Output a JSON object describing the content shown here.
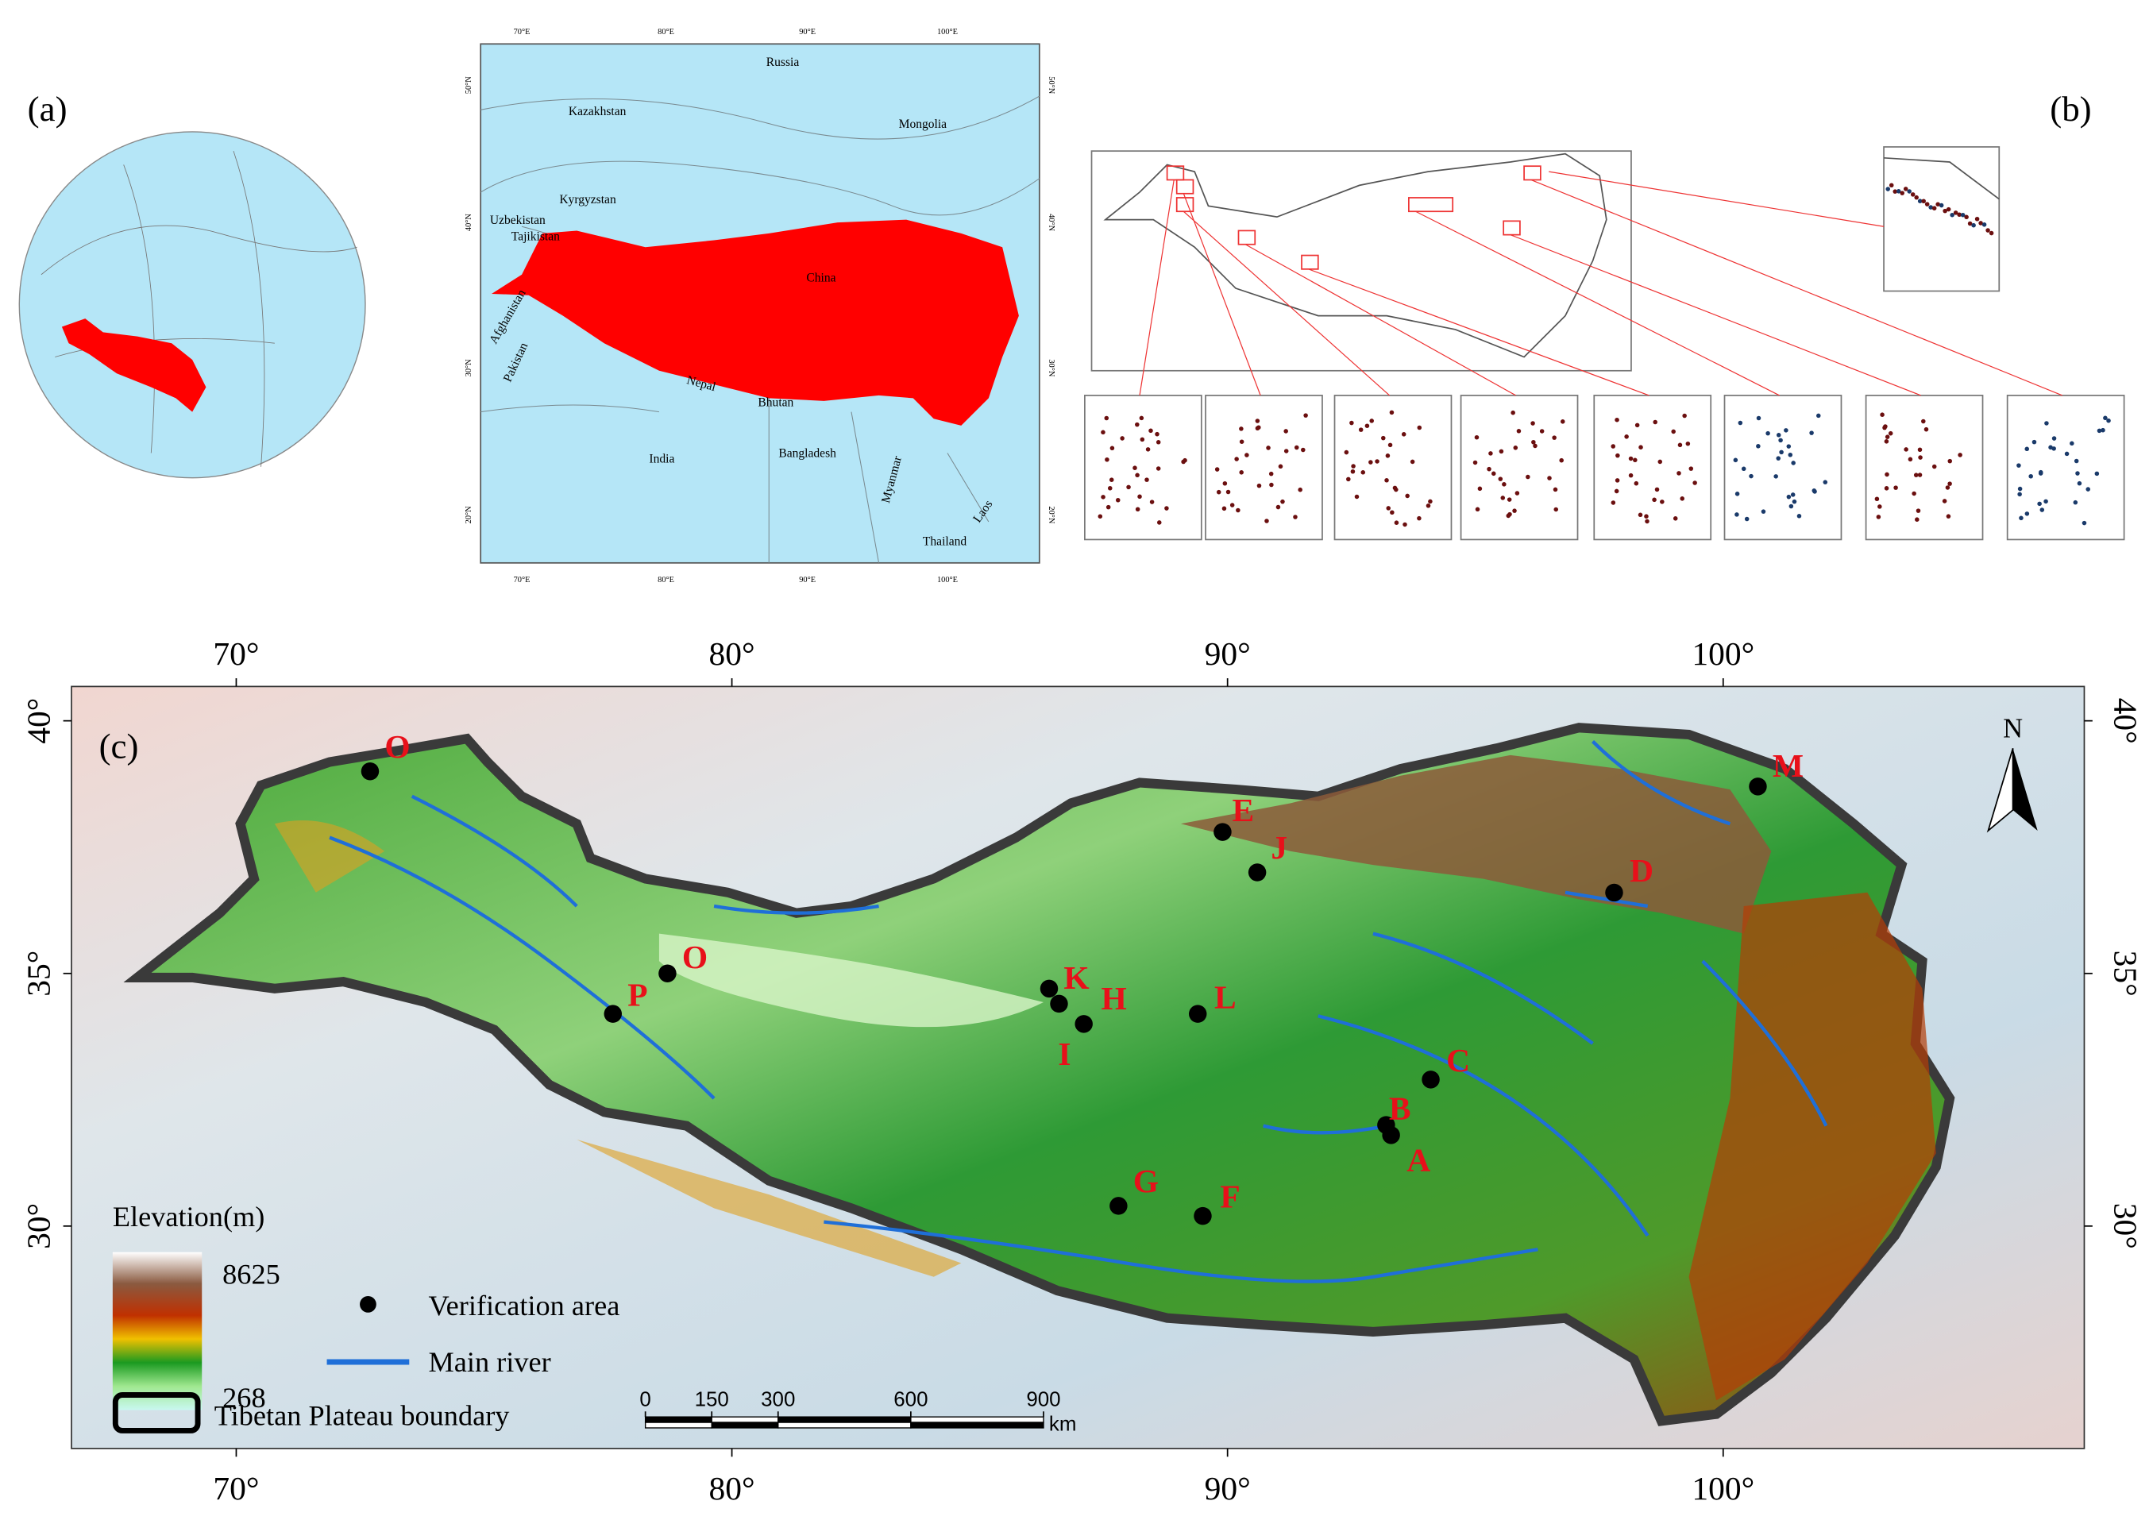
{
  "panel_labels": [
    "(a)",
    "(b)",
    "(c)"
  ],
  "inset_map": {
    "countries": [
      "Russia",
      "Kazakhstan",
      "Mongolia",
      "Kyrgyzstan",
      "Uzbekistan",
      "Tajikistan",
      "Afghanistan",
      "Pakistan",
      "China",
      "Nepal",
      "Bhutan",
      "India",
      "Bangladesh",
      "Myanmar",
      "Laos",
      "Thailand"
    ],
    "lon_ticks": [
      "70°E",
      "80°E",
      "90°E",
      "100°E"
    ],
    "lat_ticks": [
      "50°N",
      "40°N",
      "30°N",
      "20°N"
    ]
  },
  "main_map": {
    "lon_ticks": [
      {
        "value": 70,
        "label": "70°"
      },
      {
        "value": 80,
        "label": "80°"
      },
      {
        "value": 90,
        "label": "90°"
      },
      {
        "value": 100,
        "label": "100°"
      }
    ],
    "lat_ticks": [
      {
        "value": 40,
        "label": "40°"
      },
      {
        "value": 35,
        "label": "35°"
      },
      {
        "value": 30,
        "label": "30°"
      }
    ],
    "north": "N",
    "points": [
      {
        "label": "O",
        "lon": 72.7,
        "lat": 39.0
      },
      {
        "label": "E",
        "lon": 89.9,
        "lat": 37.8
      },
      {
        "label": "J",
        "lon": 90.6,
        "lat": 37.0
      },
      {
        "label": "D",
        "lon": 97.8,
        "lat": 36.6
      },
      {
        "label": "M",
        "lon": 100.7,
        "lat": 38.7
      },
      {
        "label": "O",
        "lon": 78.7,
        "lat": 35.0
      },
      {
        "label": "P",
        "lon": 77.6,
        "lat": 34.2
      },
      {
        "label": "K",
        "lon": 86.4,
        "lat": 34.7
      },
      {
        "label": "H",
        "lon": 86.6,
        "lat": 34.4
      },
      {
        "label": "I",
        "lon": 87.1,
        "lat": 34.0
      },
      {
        "label": "L",
        "lon": 89.4,
        "lat": 34.2
      },
      {
        "label": "C",
        "lon": 94.1,
        "lat": 32.9
      },
      {
        "label": "B",
        "lon": 93.2,
        "lat": 32.0
      },
      {
        "label": "A",
        "lon": 93.3,
        "lat": 31.8
      },
      {
        "label": "G",
        "lon": 87.8,
        "lat": 30.4
      },
      {
        "label": "F",
        "lon": 89.5,
        "lat": 30.2
      }
    ],
    "legend": {
      "elevation_title": "Elevation(m)",
      "elevation_max": 8625,
      "elevation_min": 268,
      "points": "Verification area",
      "rivers": "Main river",
      "boundary": "Tibetan Plateau boundary"
    },
    "scale_bar": {
      "ticks": [
        0,
        150,
        300,
        600,
        900
      ],
      "unit": "km"
    }
  }
}
